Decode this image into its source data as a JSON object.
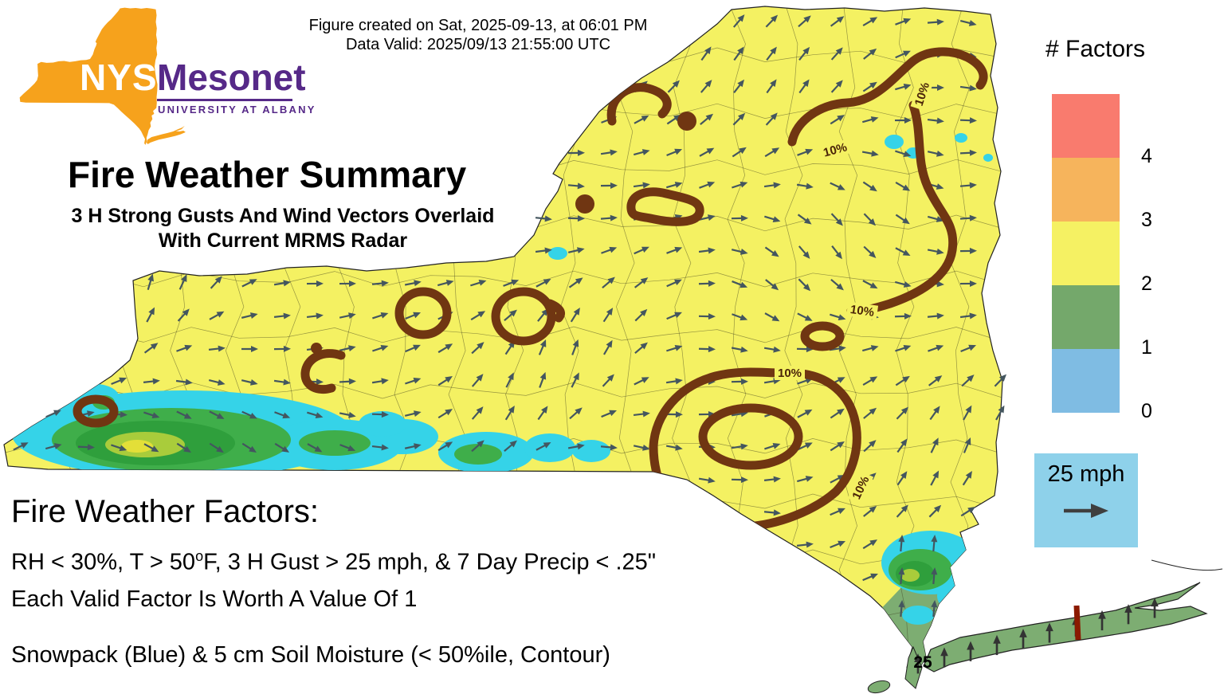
{
  "header": {
    "created": "Figure created on Sat, 2025-09-13, at 06:01 PM",
    "valid": "Data Valid: 2025/09/13 21:55:00 UTC"
  },
  "logo": {
    "acronym": "NYS",
    "name": "Mesonet",
    "institution": "UNIVERSITY AT ALBANY",
    "orange": "#F6A21C",
    "purple": "#562988"
  },
  "title": "Fire Weather Summary",
  "subtitle": {
    "line1": "3 H Strong Gusts And Wind Vectors Overlaid",
    "line2": "With Current MRMS Radar"
  },
  "legend": {
    "title": "# Factors",
    "tick_labels": [
      "4",
      "3",
      "2",
      "1",
      "0"
    ],
    "colors": [
      "#F97B6E",
      "#F6B45C",
      "#F5F163",
      "#74A86B",
      "#7FBCE3"
    ]
  },
  "wind_key": {
    "label": "25 mph",
    "bg": "#8ED1EA",
    "icon": "right-arrow"
  },
  "map": {
    "contour_label": "10%",
    "gust_label": "25",
    "state_fill": "#F4F162",
    "low_factor_fill": "#7DAD72",
    "contour_color": "#703612",
    "radar_colors": [
      "#35D3E8",
      "#3FAE4A",
      "#2F9F3C",
      "#A9CC3B",
      "#E3DF38"
    ],
    "wind_arrow_color": "#44565F"
  },
  "footer": {
    "heading": "Fire Weather Factors:",
    "criteria_pre": "RH < 30%, T > 50",
    "criteria_sup": "o",
    "criteria_post": "F, 3 H Gust > 25 mph, & 7 Day Precip < .25\"",
    "value_note": "Each Valid Factor Is Worth A Value Of 1",
    "overlay_note": "Snowpack (Blue) & 5 cm Soil Moisture (< 50%ile, Contour)"
  }
}
